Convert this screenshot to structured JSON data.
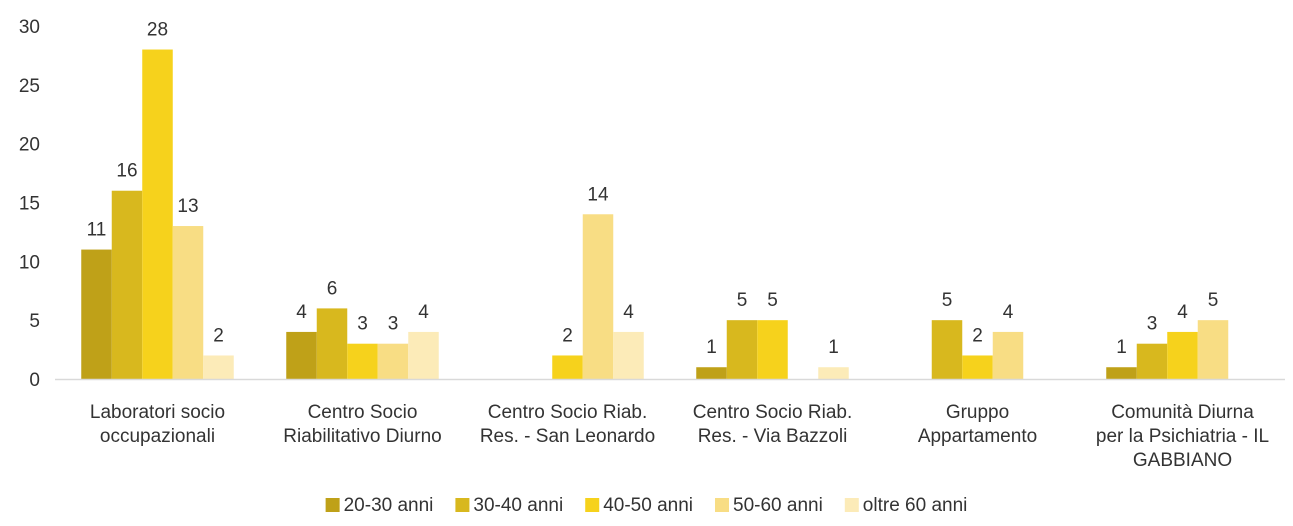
{
  "chart_data": {
    "type": "bar",
    "title": "",
    "xlabel": "",
    "ylabel": "",
    "ylim": [
      0,
      30
    ],
    "yticks": [
      0,
      5,
      10,
      15,
      20,
      25,
      30
    ],
    "grid": false,
    "legend_position": "bottom",
    "categories": [
      [
        "Laboratori socio",
        "occupazionali"
      ],
      [
        "Centro Socio",
        "Riabilitativo Diurno"
      ],
      [
        "Centro Socio Riab.",
        "Res. - San Leonardo"
      ],
      [
        "Centro Socio Riab.",
        "Res. - Via Bazzoli"
      ],
      [
        "Gruppo",
        "Appartamento"
      ],
      [
        "Comunità Diurna",
        "per la Psichiatria - IL",
        "GABBIANO"
      ]
    ],
    "series": [
      {
        "name": "20-30 anni",
        "color": "#bfa118",
        "values": [
          11,
          4,
          null,
          1,
          null,
          1
        ]
      },
      {
        "name": "30-40 anni",
        "color": "#d8b81e",
        "values": [
          16,
          6,
          null,
          5,
          5,
          3
        ]
      },
      {
        "name": "40-50 anni",
        "color": "#f6d21c",
        "values": [
          28,
          3,
          2,
          5,
          2,
          4
        ]
      },
      {
        "name": "50-60 anni",
        "color": "#f8dd84",
        "values": [
          13,
          3,
          14,
          null,
          4,
          5
        ]
      },
      {
        "name": "oltre 60 anni",
        "color": "#fcebb8",
        "values": [
          2,
          4,
          4,
          1,
          null,
          null
        ]
      }
    ]
  }
}
